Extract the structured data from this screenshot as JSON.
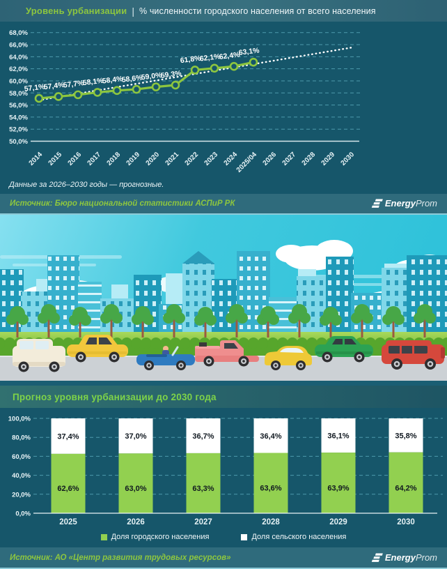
{
  "header": {
    "title": "Уровень урбанизации",
    "separator": "|",
    "subtitle": "% численности городского населения от всего населения"
  },
  "note": "Данные за 2026–2030 годы — прогнозные.",
  "sources": {
    "first": "Источник: Бюро национальной статистики АСПиР РК",
    "second": "Источник: АО «Центр развития трудовых ресурсов»"
  },
  "logo": {
    "bold": "Energy",
    "light": "Prom"
  },
  "section2": {
    "title": "Прогноз уровня урбанизации до 2030 года"
  },
  "colors": {
    "accent_green": "#8dc63f",
    "bar_green": "#92d050",
    "background_teal": "#16566a",
    "source_bar": "#2f6b7c",
    "gridline": "#57a7b8",
    "white": "#ffffff"
  },
  "chart_data": [
    {
      "type": "line",
      "title": "Уровень урбанизации, % численности городского населения от всего населения",
      "x": [
        "2014",
        "2015",
        "2016",
        "2017",
        "2018",
        "2019",
        "2020",
        "2021",
        "2022",
        "2023",
        "2024",
        "2025/04",
        "2026",
        "2027",
        "2028",
        "2029",
        "2030"
      ],
      "values": [
        57.1,
        57.4,
        57.7,
        58.1,
        58.4,
        58.6,
        59.0,
        59.3,
        61.8,
        62.1,
        62.4,
        63.1
      ],
      "value_labels": [
        "57,1%",
        "57,4%",
        "57,7%",
        "58,1%",
        "58,4%",
        "58,6%",
        "59,0%",
        "59,3%",
        "61,8%",
        "62,1%",
        "62,4%",
        "63,1%"
      ],
      "color": "#8dc63f",
      "trend": {
        "style": "dotted-white",
        "start": 56.8,
        "end": 65.5,
        "note": "прогнозный тренд до 2030"
      },
      "ylim": [
        50,
        68
      ],
      "grid": true,
      "yticks": [
        {
          "v": 68,
          "label": "68,0%"
        },
        {
          "v": 66,
          "label": "66,0%"
        },
        {
          "v": 64,
          "label": "64,0%"
        },
        {
          "v": 62,
          "label": "62,0%"
        },
        {
          "v": 60,
          "label": "60,0%"
        },
        {
          "v": 58,
          "label": "58,0%"
        },
        {
          "v": 56,
          "label": "56,0%"
        },
        {
          "v": 54,
          "label": "54,0%"
        },
        {
          "v": 52,
          "label": "52,0%"
        },
        {
          "v": 50,
          "label": "50,0%"
        }
      ]
    },
    {
      "type": "bar",
      "subtype": "stacked",
      "title": "Прогноз уровня урбанизации до 2030 года",
      "categories": [
        "2025",
        "2026",
        "2027",
        "2028",
        "2029",
        "2030"
      ],
      "series": [
        {
          "name": "Доля городского населения",
          "color": "#92d050",
          "values": [
            62.6,
            63.0,
            63.3,
            63.6,
            63.9,
            64.2
          ],
          "labels": [
            "62,6%",
            "63,0%",
            "63,3%",
            "63,6%",
            "63,9%",
            "64,2%"
          ]
        },
        {
          "name": "Доля сельского населения",
          "color": "#ffffff",
          "values": [
            37.4,
            37.0,
            36.7,
            36.4,
            36.1,
            35.8
          ],
          "labels": [
            "37,4%",
            "37,0%",
            "36,7%",
            "36,4%",
            "36,1%",
            "35,8%"
          ]
        }
      ],
      "ylim": [
        0,
        100
      ],
      "grid": true,
      "legend_position": "bottom",
      "yticks": [
        {
          "v": 100,
          "label": "100,0%"
        },
        {
          "v": 80,
          "label": "80,0%"
        },
        {
          "v": 60,
          "label": "60,0%"
        },
        {
          "v": 40,
          "label": "40,0%"
        },
        {
          "v": 20,
          "label": "20,0%"
        },
        {
          "v": 0,
          "label": "0,0%"
        }
      ]
    }
  ]
}
